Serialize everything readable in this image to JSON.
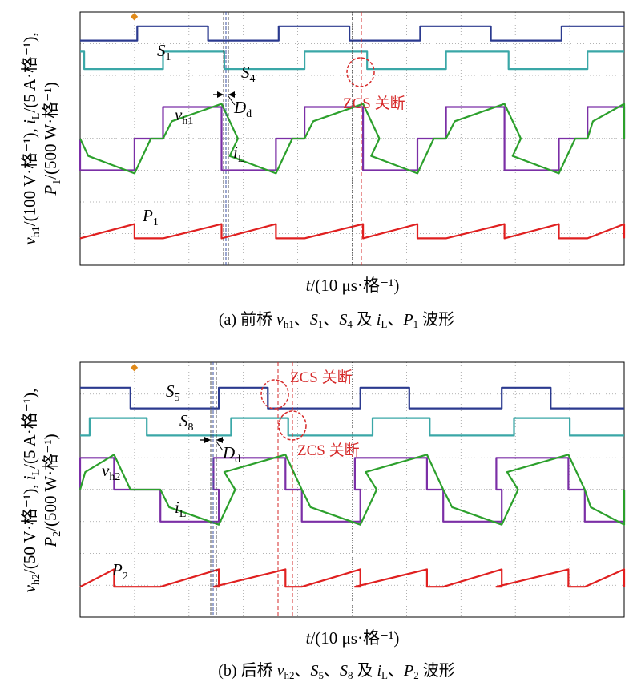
{
  "chart_data": [
    {
      "type": "line",
      "panel": "a",
      "caption": {
        "prefix": "(a) 前桥 ",
        "v": "v",
        "v_sub": "h1",
        "s_a": "S",
        "s_a_sub": "1",
        "s_b": "S",
        "s_b_sub": "4",
        "mid": " 及 ",
        "i": "i",
        "i_sub": "L",
        "p": "P",
        "p_sub": "1",
        "suffix": " 波形"
      },
      "xlabel": {
        "var": "t",
        "unit": "/(10 μs·格⁻¹)"
      },
      "ylabel": {
        "line1": {
          "v": "v",
          "v_sub": "h1",
          "v_unit": "/(100 V·格⁻¹), ",
          "i": "i",
          "i_sub": "L",
          "i_unit": "/(5 A·格⁻¹),"
        },
        "line2": {
          "p": "P",
          "p_sub": "1",
          "p_unit": "/(500 W·格⁻¹)"
        }
      },
      "x_divisions": 10,
      "y_divisions": 8,
      "traces": [
        {
          "name": "S1",
          "label": "S",
          "sub": "1",
          "color": "#2b3a8f",
          "kind": "square",
          "levels_div": [
            7.1,
            7.55
          ],
          "high_intervals_div": [
            [
              2.1,
              4.7
            ],
            [
              7.3,
              9.9
            ],
            [
              12.5,
              15.1
            ],
            [
              17.7,
              20.3
            ]
          ]
        },
        {
          "name": "S4",
          "label": "S",
          "sub": "4",
          "color": "#3aa7a7",
          "kind": "square",
          "levels_div": [
            6.2,
            6.75
          ],
          "high_intervals_div": [
            [
              -1.0,
              0.15
            ],
            [
              3.05,
              5.3
            ],
            [
              8.25,
              10.55
            ],
            [
              13.45,
              15.75
            ],
            [
              18.65,
              20.0
            ]
          ]
        },
        {
          "name": "vh1",
          "label": "v",
          "sub": "h1",
          "color": "#7b2fa6",
          "kind": "bipolar",
          "zero_div": 4,
          "amp_div": 1.0,
          "pos_intervals_div": [
            [
              3.05,
              5.2
            ],
            [
              8.25,
              10.4
            ],
            [
              13.45,
              15.6
            ],
            [
              18.65,
              20.0
            ]
          ],
          "neg_intervals_div": [
            [
              0.0,
              2.0
            ],
            [
              5.2,
              7.2
            ],
            [
              10.4,
              12.4
            ],
            [
              15.6,
              17.6
            ]
          ]
        },
        {
          "name": "iL",
          "label": "i",
          "sub": "L",
          "color": "#2ca02c",
          "kind": "current"
        },
        {
          "name": "P1",
          "label": "P",
          "sub": "1",
          "color": "#e02020",
          "kind": "power",
          "zero_div": 0.85,
          "peak_div": 1.3
        }
      ],
      "annotations": [
        {
          "kind": "dead_time",
          "label": "D",
          "sub": "d"
        },
        {
          "kind": "zcs",
          "text": "ZCS 关断"
        }
      ]
    },
    {
      "type": "line",
      "panel": "b",
      "caption": {
        "prefix": "(b) 后桥 ",
        "v": "v",
        "v_sub": "h2",
        "s_a": "S",
        "s_a_sub": "5",
        "s_b": "S",
        "s_b_sub": "8",
        "mid": " 及 ",
        "i": "i",
        "i_sub": "L",
        "p": "P",
        "p_sub": "2",
        "suffix": " 波形"
      },
      "xlabel": {
        "var": "t",
        "unit": "/(10 μs·格⁻¹)"
      },
      "ylabel": {
        "line1": {
          "v": "v",
          "v_sub": "h2",
          "v_unit": "/(50 V·格⁻¹), ",
          "i": "i",
          "i_sub": "L",
          "i_unit": "/(5 A·格⁻¹),"
        },
        "line2": {
          "p": "P",
          "p_sub": "2",
          "p_unit": "/(500 W·格⁻¹)"
        }
      },
      "x_divisions": 10,
      "y_divisions": 8,
      "traces": [
        {
          "name": "S5",
          "label": "S",
          "sub": "5",
          "color": "#2b3a8f",
          "kind": "square",
          "levels_div": [
            6.55,
            7.2
          ],
          "high_intervals_div": [
            [
              -1.0,
              1.85
            ],
            [
              5.1,
              6.9
            ],
            [
              10.3,
              12.1
            ],
            [
              15.5,
              17.3
            ]
          ]
        },
        {
          "name": "S8",
          "label": "S",
          "sub": "8",
          "color": "#3aa7a7",
          "kind": "square",
          "levels_div": [
            5.7,
            6.25
          ],
          "high_intervals_div": [
            [
              0.35,
              2.45
            ],
            [
              5.55,
              7.65
            ],
            [
              10.75,
              12.85
            ],
            [
              15.95,
              18.0
            ]
          ]
        },
        {
          "name": "vh2",
          "label": "v",
          "sub": "h2",
          "color": "#7b2fa6",
          "kind": "bipolar",
          "zero_div": 4,
          "amp_div": 1.0,
          "pos_intervals_div": [
            [
              0.0,
              1.25
            ],
            [
              4.9,
              7.55
            ],
            [
              10.1,
              12.75
            ],
            [
              15.3,
              17.95
            ]
          ],
          "neg_intervals_div": [
            [
              2.95,
              5.1
            ],
            [
              8.15,
              10.3
            ],
            [
              13.35,
              15.5
            ],
            [
              18.55,
              20.0
            ]
          ]
        },
        {
          "name": "iL",
          "label": "i",
          "sub": "L",
          "color": "#2ca02c",
          "kind": "current"
        },
        {
          "name": "P2",
          "label": "P",
          "sub": "2",
          "color": "#e02020",
          "kind": "power",
          "zero_div": 0.95,
          "peak_div": 1.5
        }
      ],
      "annotations": [
        {
          "kind": "dead_time",
          "label": "D",
          "sub": "d"
        },
        {
          "kind": "zcs",
          "text": "ZCS 关断"
        },
        {
          "kind": "zcs",
          "text": "ZCS 关断"
        }
      ]
    }
  ]
}
